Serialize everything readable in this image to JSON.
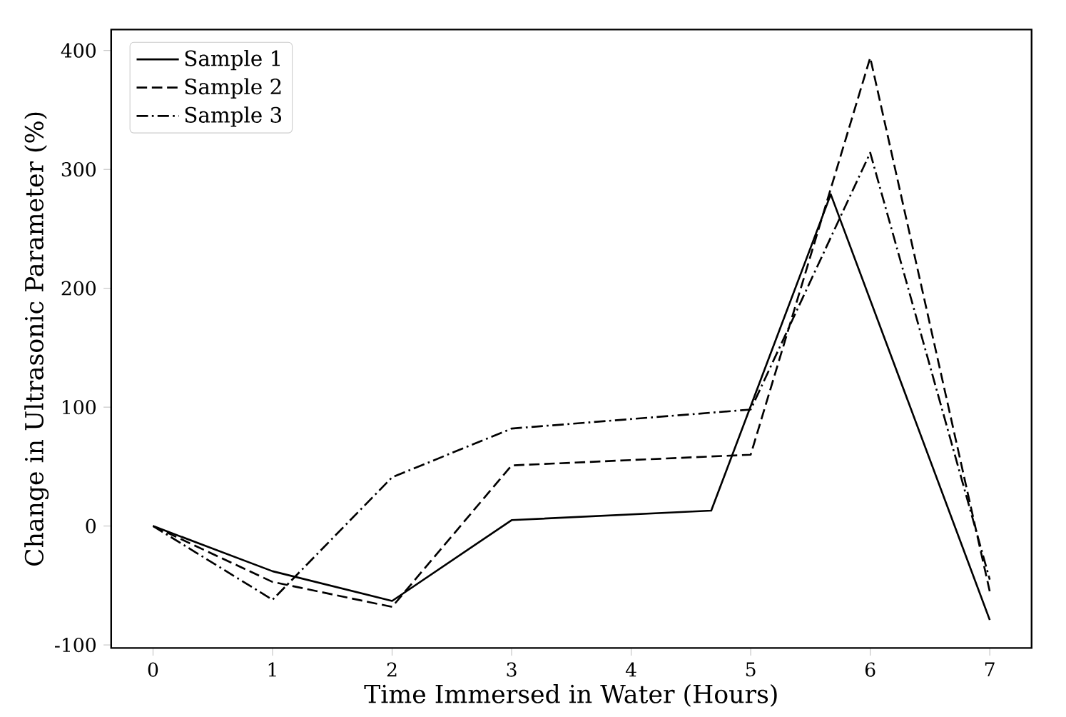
{
  "chart_data": {
    "type": "line",
    "xlabel": "Time Immersed in Water (Hours)",
    "ylabel": "Change in Ultrasonic Parameter (%)",
    "xlim": [
      -0.35,
      7.35
    ],
    "ylim": [
      -102.6,
      417.6
    ],
    "xticks": [
      0,
      1,
      2,
      3,
      4,
      5,
      6,
      7
    ],
    "yticks": [
      -100,
      0,
      100,
      200,
      300,
      400
    ],
    "legend": "top left",
    "grid": false,
    "series": [
      {
        "name": "Sample 1",
        "color": "#000000",
        "line_style": "solid",
        "x": [
          0,
          1,
          2,
          3,
          4.67,
          5.67,
          7
        ],
        "values": [
          0,
          -38,
          -63,
          5,
          13,
          279,
          -79
        ]
      },
      {
        "name": "Sample 2",
        "color": "#000000",
        "line_style": "dashed",
        "x": [
          0,
          1,
          2,
          3,
          5,
          6,
          7
        ],
        "values": [
          0,
          -47,
          -68,
          51,
          60,
          394,
          -55
        ]
      },
      {
        "name": "Sample 3",
        "color": "#000000",
        "line_style": "dashdot",
        "x": [
          0,
          1,
          2,
          3,
          5,
          6,
          7
        ],
        "values": [
          0,
          -62,
          41,
          82,
          98,
          314,
          -45
        ]
      }
    ]
  }
}
